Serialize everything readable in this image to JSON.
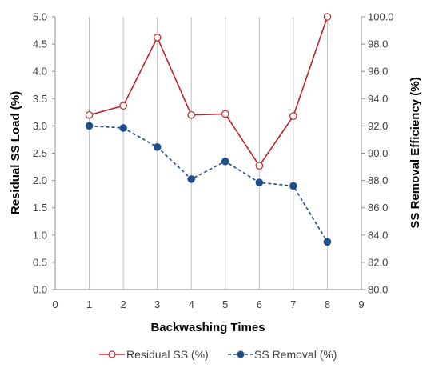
{
  "chart_data": {
    "type": "line",
    "title": "",
    "xlabel": "Backwashing Times",
    "ylabel": "Residual SS Load (%)",
    "y2label": "SS Removal Efficiency (%)",
    "xlim": [
      0,
      9
    ],
    "ylim": [
      0,
      5
    ],
    "y2lim": [
      80,
      100
    ],
    "x_ticks": [
      "0",
      "1",
      "2",
      "3",
      "4",
      "5",
      "6",
      "7",
      "8",
      "9"
    ],
    "y_ticks": [
      "0.0",
      "0.5",
      "1.0",
      "1.5",
      "2.0",
      "2.5",
      "3.0",
      "3.5",
      "4.0",
      "4.5",
      "5.0"
    ],
    "y2_ticks": [
      "80.0",
      "82.0",
      "84.0",
      "86.0",
      "88.0",
      "90.0",
      "92.0",
      "94.0",
      "96.0",
      "98.0",
      "100.0"
    ],
    "grid": "vertical",
    "legend_position": "bottom",
    "x": [
      1,
      2,
      3,
      4,
      5,
      6,
      7,
      8
    ],
    "series": [
      {
        "name": "Residual SS (%)",
        "axis": "left",
        "color": "#c0202a",
        "line_style": "solid",
        "marker": "open-circle",
        "values": [
          3.2,
          3.37,
          4.62,
          3.2,
          3.22,
          2.27,
          3.18,
          5.0
        ]
      },
      {
        "name": "SS Removal (%)",
        "axis": "right",
        "color": "#1f4e8c",
        "line_style": "dashed",
        "marker": "filled-circle",
        "values": [
          92.0,
          91.85,
          90.45,
          88.1,
          89.4,
          87.85,
          87.6,
          83.5
        ]
      }
    ]
  }
}
